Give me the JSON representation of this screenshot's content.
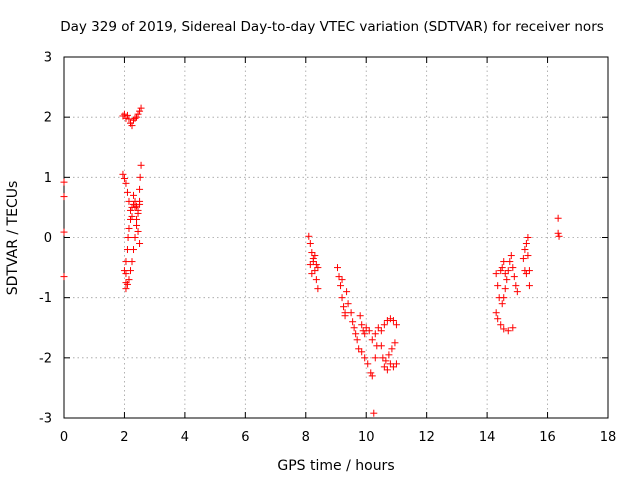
{
  "chart_data": {
    "type": "scatter",
    "title": "Day 329 of 2019, Sidereal Day-to-day VTEC variation (SDTVAR) for receiver nors",
    "xlabel": "GPS time / hours",
    "ylabel": "SDTVAR / TECUs",
    "xlim": [
      0,
      18
    ],
    "ylim": [
      -3,
      3
    ],
    "xticks": [
      0,
      2,
      4,
      6,
      8,
      10,
      12,
      14,
      16,
      18
    ],
    "yticks": [
      -3,
      -2,
      -1,
      0,
      1,
      2,
      3
    ],
    "xtick_labels": [
      "0",
      "2",
      "4",
      "6",
      "8",
      "10",
      "12",
      "14",
      "16",
      "18"
    ],
    "ytick_labels": [
      "-3",
      "-2",
      "-1",
      "0",
      "1",
      "2",
      "3"
    ],
    "grid": true,
    "marker": "plus",
    "series": [
      {
        "name": "SDTVAR",
        "color": "#ff0000",
        "points": [
          [
            0.0,
            0.92
          ],
          [
            0.0,
            0.68
          ],
          [
            0.0,
            0.09
          ],
          [
            0.0,
            -0.65
          ],
          [
            1.95,
            2.02
          ],
          [
            2.0,
            2.05
          ],
          [
            2.05,
            1.98
          ],
          [
            2.1,
            2.03
          ],
          [
            2.15,
            1.97
          ],
          [
            2.2,
            1.9
          ],
          [
            2.25,
            1.86
          ],
          [
            2.3,
            1.95
          ],
          [
            2.35,
            1.98
          ],
          [
            2.4,
            2.0
          ],
          [
            2.45,
            2.05
          ],
          [
            2.5,
            2.1
          ],
          [
            2.55,
            2.15
          ],
          [
            1.95,
            1.05
          ],
          [
            2.0,
            0.98
          ],
          [
            2.05,
            0.9
          ],
          [
            2.1,
            0.75
          ],
          [
            2.15,
            0.6
          ],
          [
            2.2,
            0.45
          ],
          [
            2.25,
            0.35
          ],
          [
            2.3,
            0.55
          ],
          [
            2.35,
            0.6
          ],
          [
            2.4,
            0.52
          ],
          [
            2.45,
            0.45
          ],
          [
            2.5,
            0.6
          ],
          [
            2.5,
            0.8
          ],
          [
            2.52,
            1.0
          ],
          [
            2.55,
            1.2
          ],
          [
            2.05,
            -0.85
          ],
          [
            2.05,
            -0.6
          ],
          [
            2.05,
            -0.4
          ],
          [
            2.1,
            -0.2
          ],
          [
            2.12,
            0.0
          ],
          [
            2.15,
            0.15
          ],
          [
            2.2,
            0.3
          ],
          [
            2.25,
            0.5
          ],
          [
            2.3,
            0.7
          ],
          [
            2.35,
            0.5
          ],
          [
            2.4,
            0.3
          ],
          [
            2.45,
            0.1
          ],
          [
            2.5,
            -0.1
          ],
          [
            2.0,
            -0.55
          ],
          [
            2.05,
            -0.75
          ],
          [
            2.1,
            -0.78
          ],
          [
            2.15,
            -0.7
          ],
          [
            2.2,
            -0.55
          ],
          [
            2.25,
            -0.4
          ],
          [
            2.3,
            -0.2
          ],
          [
            2.35,
            0.0
          ],
          [
            2.4,
            0.2
          ],
          [
            2.45,
            0.4
          ],
          [
            2.5,
            0.55
          ],
          [
            8.1,
            0.02
          ],
          [
            8.15,
            -0.1
          ],
          [
            8.2,
            -0.25
          ],
          [
            8.25,
            -0.4
          ],
          [
            8.3,
            -0.55
          ],
          [
            8.35,
            -0.7
          ],
          [
            8.4,
            -0.85
          ],
          [
            8.2,
            -0.6
          ],
          [
            8.25,
            -0.35
          ],
          [
            8.3,
            -0.3
          ],
          [
            8.35,
            -0.45
          ],
          [
            8.4,
            -0.5
          ],
          [
            8.15,
            -0.45
          ],
          [
            9.05,
            -0.5
          ],
          [
            9.1,
            -0.65
          ],
          [
            9.15,
            -0.8
          ],
          [
            9.2,
            -1.0
          ],
          [
            9.25,
            -1.15
          ],
          [
            9.3,
            -1.3
          ],
          [
            9.35,
            -0.9
          ],
          [
            9.4,
            -1.1
          ],
          [
            9.2,
            -0.7
          ],
          [
            9.3,
            -1.25
          ],
          [
            9.5,
            -1.25
          ],
          [
            9.55,
            -1.4
          ],
          [
            9.6,
            -1.5
          ],
          [
            9.65,
            -1.6
          ],
          [
            9.7,
            -1.7
          ],
          [
            9.75,
            -1.85
          ],
          [
            9.8,
            -1.3
          ],
          [
            9.85,
            -1.45
          ],
          [
            9.9,
            -1.55
          ],
          [
            9.95,
            -1.6
          ],
          [
            10.0,
            -1.5
          ],
          [
            10.1,
            -1.55
          ],
          [
            10.2,
            -1.7
          ],
          [
            10.3,
            -1.6
          ],
          [
            9.85,
            -1.9
          ],
          [
            9.95,
            -2.0
          ],
          [
            10.05,
            -2.1
          ],
          [
            10.15,
            -2.25
          ],
          [
            10.2,
            -2.3
          ],
          [
            10.3,
            -2.0
          ],
          [
            10.35,
            -1.8
          ],
          [
            10.25,
            -2.92
          ],
          [
            10.4,
            -1.5
          ],
          [
            10.5,
            -1.8
          ],
          [
            10.55,
            -2.0
          ],
          [
            10.6,
            -2.15
          ],
          [
            10.7,
            -2.2
          ],
          [
            10.8,
            -2.1
          ],
          [
            10.9,
            -2.15
          ],
          [
            11.0,
            -2.1
          ],
          [
            10.5,
            -1.55
          ],
          [
            10.6,
            -1.45
          ],
          [
            10.7,
            -1.38
          ],
          [
            10.8,
            -1.35
          ],
          [
            10.9,
            -1.38
          ],
          [
            11.0,
            -1.45
          ],
          [
            10.95,
            -1.75
          ],
          [
            10.85,
            -1.85
          ],
          [
            10.75,
            -1.95
          ],
          [
            10.65,
            -2.05
          ],
          [
            14.3,
            -0.6
          ],
          [
            14.35,
            -0.8
          ],
          [
            14.4,
            -1.0
          ],
          [
            14.3,
            -1.25
          ],
          [
            14.35,
            -1.35
          ],
          [
            14.45,
            -1.45
          ],
          [
            14.55,
            -1.52
          ],
          [
            14.7,
            -1.55
          ],
          [
            14.85,
            -1.5
          ],
          [
            14.45,
            -0.55
          ],
          [
            14.5,
            -0.5
          ],
          [
            14.55,
            -0.4
          ],
          [
            14.6,
            -0.6
          ],
          [
            14.65,
            -0.7
          ],
          [
            14.7,
            -0.55
          ],
          [
            14.75,
            -0.4
          ],
          [
            14.8,
            -0.3
          ],
          [
            14.85,
            -0.5
          ],
          [
            14.9,
            -0.65
          ],
          [
            14.95,
            -0.8
          ],
          [
            15.0,
            -0.9
          ],
          [
            14.6,
            -0.85
          ],
          [
            14.55,
            -1.0
          ],
          [
            14.5,
            -1.1
          ],
          [
            15.2,
            -0.35
          ],
          [
            15.25,
            -0.2
          ],
          [
            15.3,
            -0.1
          ],
          [
            15.35,
            0.0
          ],
          [
            15.35,
            -0.3
          ],
          [
            15.4,
            -0.55
          ],
          [
            15.4,
            -0.8
          ],
          [
            15.3,
            -0.6
          ],
          [
            15.25,
            -0.55
          ],
          [
            16.35,
            0.32
          ],
          [
            16.35,
            0.07
          ],
          [
            16.38,
            0.02
          ]
        ]
      }
    ]
  }
}
